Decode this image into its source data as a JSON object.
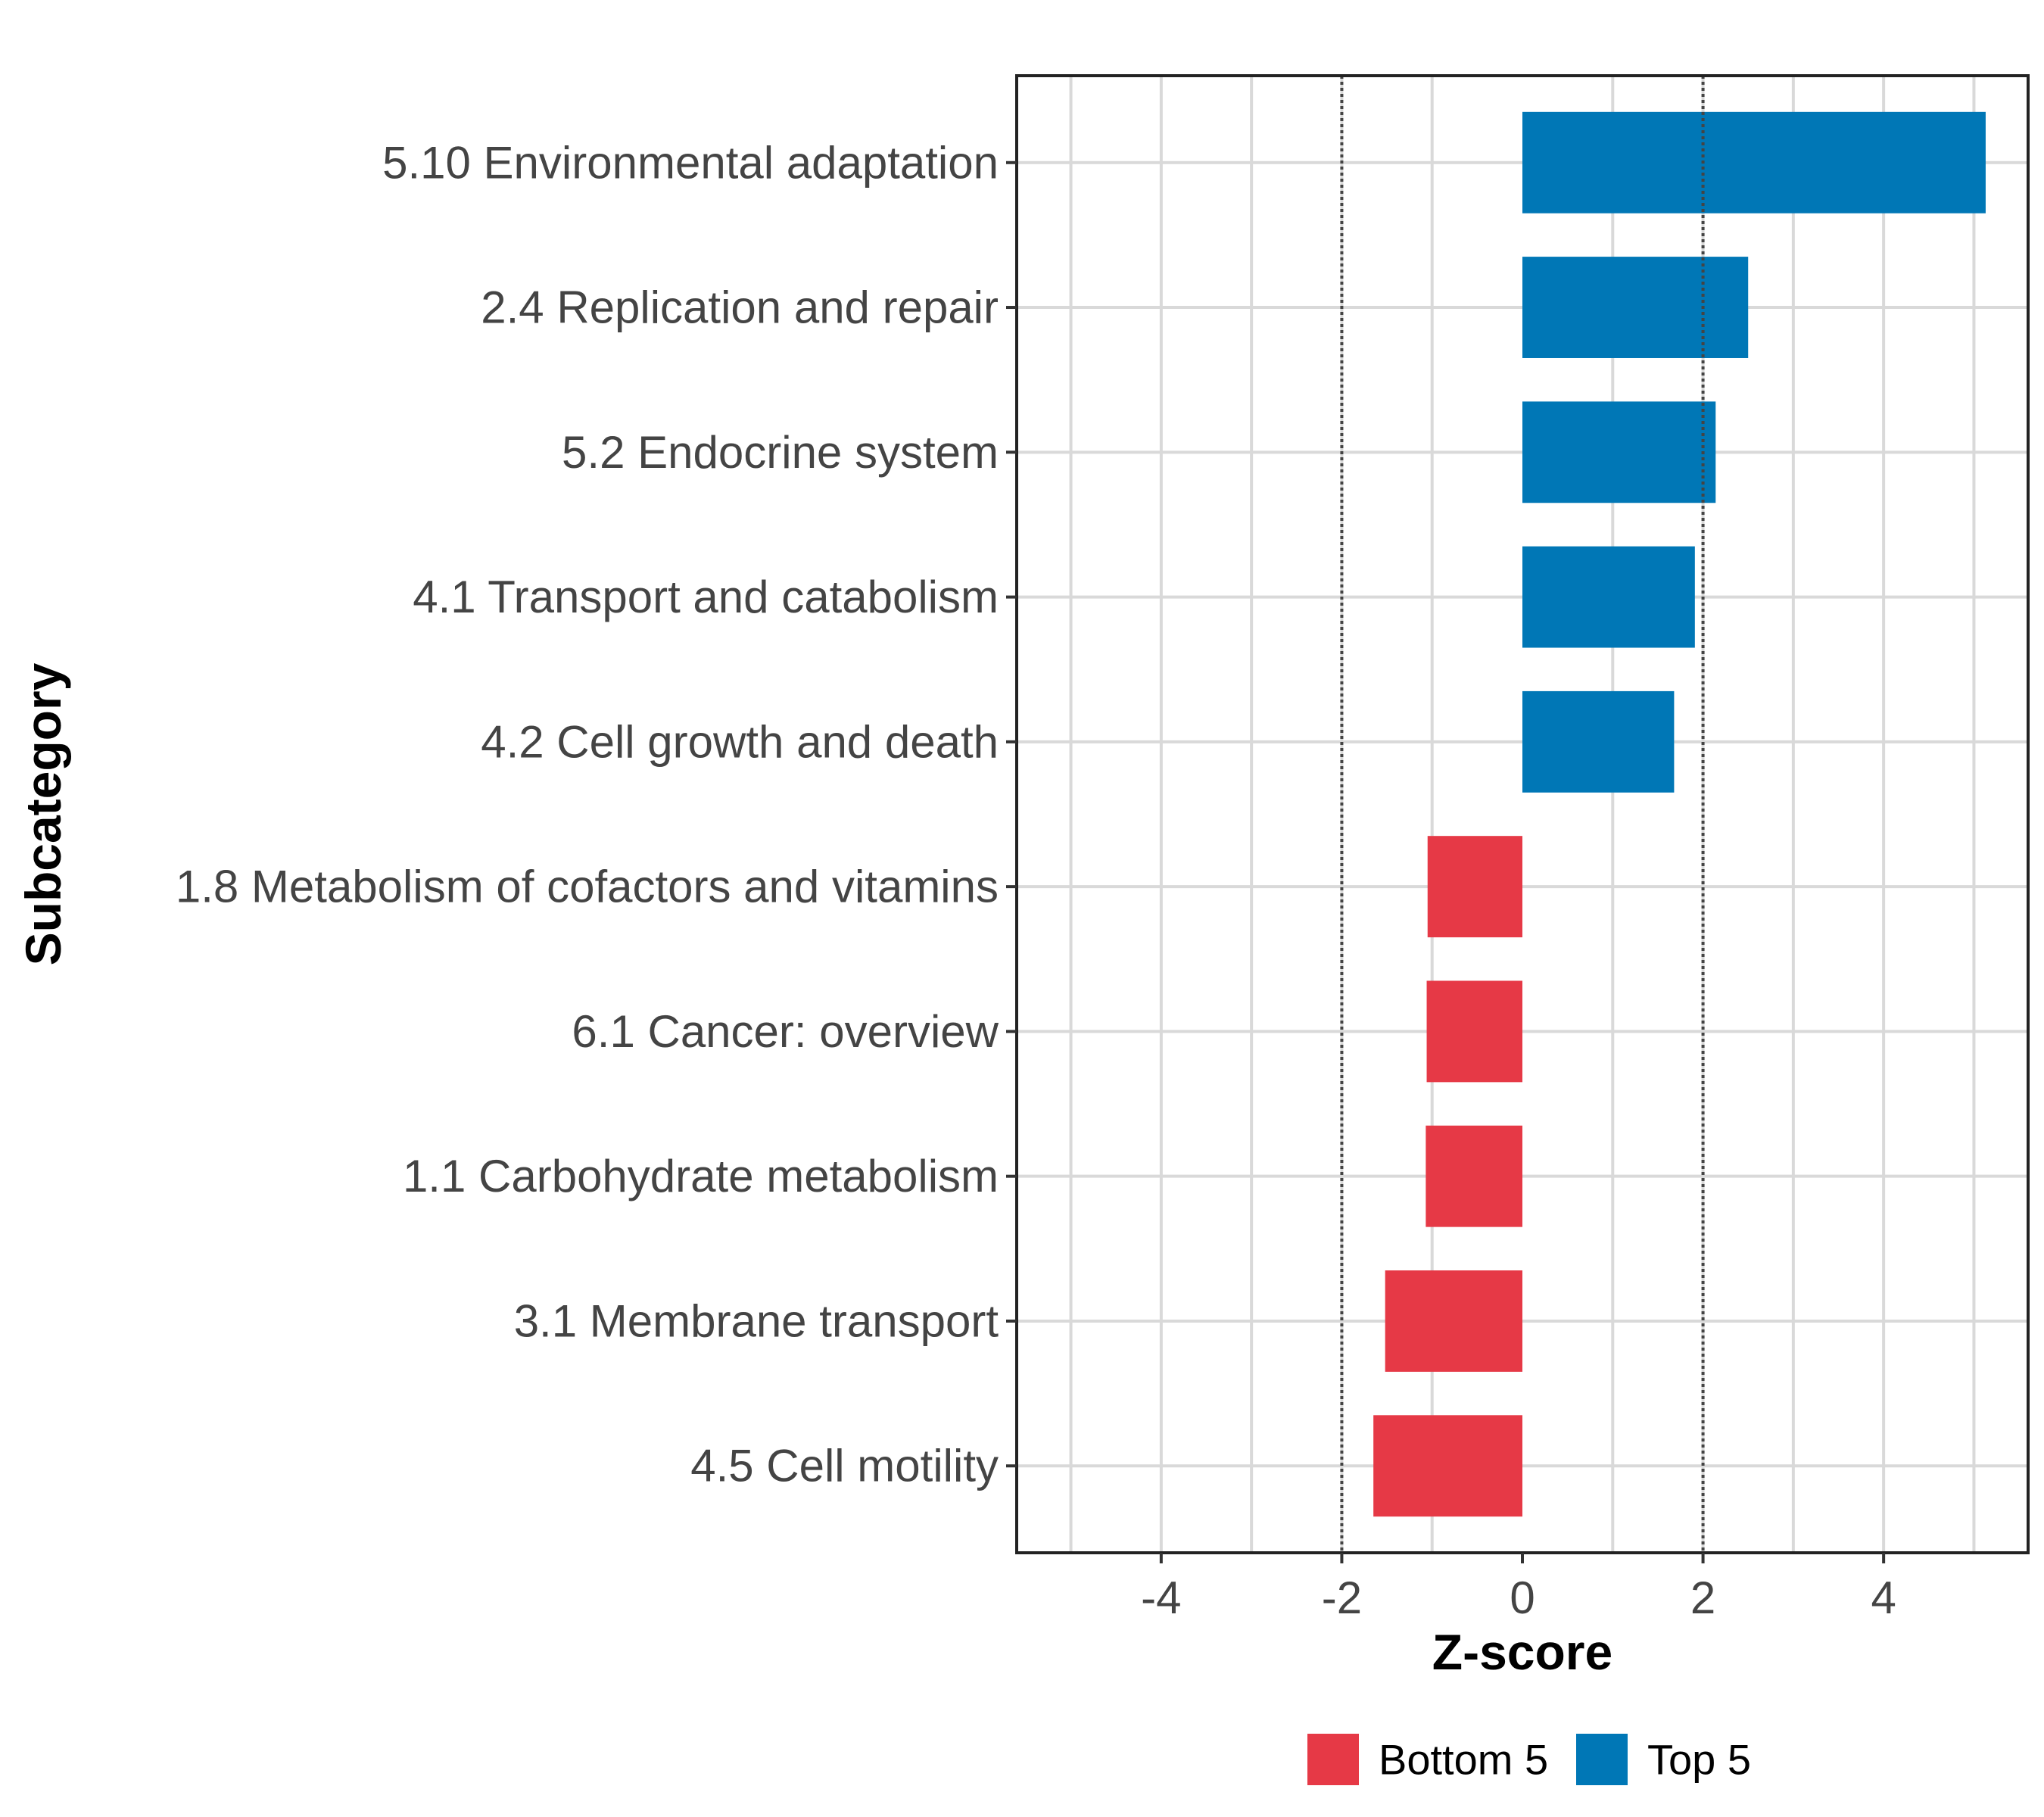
{
  "chart_data": {
    "type": "bar",
    "orientation": "horizontal",
    "xlabel": "Z-score",
    "ylabel": "Subcategory",
    "xlim": [
      -5.6,
      5.6
    ],
    "xticks": [
      -4,
      -2,
      0,
      2,
      4
    ],
    "xtick_labels": [
      "-4",
      "-2",
      "0",
      "2",
      "4"
    ],
    "reference_lines": [
      -2,
      2
    ],
    "grid": true,
    "legend_position": "bottom",
    "categories": [
      "5.10 Environmental adaptation",
      "2.4 Replication and repair",
      "5.2 Endocrine system",
      "4.1 Transport and catabolism",
      "4.2 Cell growth and death",
      "1.8 Metabolism of cofactors and vitamins",
      "6.1 Cancer: overview",
      "1.1 Carbohydrate metabolism",
      "3.1 Membrane transport",
      "4.5 Cell motility"
    ],
    "values": [
      5.13,
      2.5,
      2.14,
      1.91,
      1.68,
      -1.05,
      -1.06,
      -1.07,
      -1.52,
      -1.65
    ],
    "groups": [
      "Top 5",
      "Top 5",
      "Top 5",
      "Top 5",
      "Top 5",
      "Bottom 5",
      "Bottom 5",
      "Bottom 5",
      "Bottom 5",
      "Bottom 5"
    ],
    "legend": [
      {
        "label": "Bottom 5",
        "color": "#e63946"
      },
      {
        "label": "Top 5",
        "color": "#0077b6"
      }
    ]
  }
}
